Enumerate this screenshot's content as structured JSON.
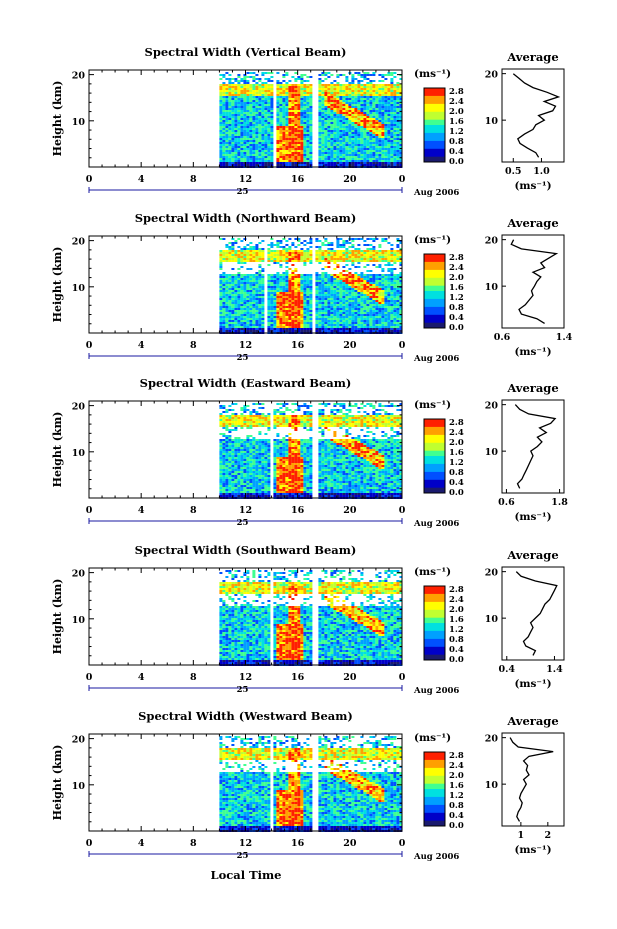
{
  "figure": {
    "x_title": "Local Time",
    "y_label": "Height (km)",
    "avg_title": "Average",
    "unit": "(ms⁻¹)",
    "date_label": "Aug 2006",
    "day_label": "25",
    "x_tick_labels": [
      "0",
      "4",
      "8",
      "12",
      "16",
      "20",
      "0"
    ],
    "y_tick_labels": [
      "20",
      "10"
    ],
    "colorbar_labels": [
      "2.8",
      "2.4",
      "2.0",
      "1.6",
      "1.2",
      "0.8",
      "0.4",
      "0.0"
    ],
    "colors": {
      "colormap": [
        "#1a1a6e",
        "#0000c8",
        "#0050ff",
        "#00a0ff",
        "#00e0e0",
        "#40ff90",
        "#c0ff30",
        "#ffff00",
        "#ffa000",
        "#ff2000"
      ],
      "background": "#ffffff",
      "axes": "#000000"
    }
  },
  "chart_data": [
    {
      "type": "heatmap",
      "title": "Spectral Width (Vertical Beam)",
      "xlabel": "",
      "ylabel": "Height (km)",
      "xlim": [
        0,
        24
      ],
      "ylim": [
        0,
        21
      ],
      "colorbar_range": [
        0.0,
        2.8
      ],
      "data_start_hour": 10,
      "gaps_hours": [
        [
          14.0,
          14.2
        ],
        [
          17.1,
          17.4
        ]
      ],
      "average_profile": {
        "title": "Average",
        "xlim": [
          0.3,
          1.4
        ],
        "x_ticks": [
          0.5,
          1.0
        ],
        "x_tick_labels": [
          "0.5",
          "1.0"
        ],
        "height_km": [
          2,
          3,
          4,
          5,
          6,
          7,
          8,
          9,
          10,
          11,
          12,
          13,
          14,
          15,
          16,
          17,
          18,
          19,
          20
        ],
        "values": [
          0.95,
          0.9,
          0.75,
          0.62,
          0.58,
          0.7,
          0.85,
          0.9,
          1.05,
          0.95,
          1.2,
          1.25,
          1.05,
          1.3,
          1.1,
          0.85,
          0.7,
          0.6,
          0.5
        ]
      }
    },
    {
      "type": "heatmap",
      "title": "Spectral Width (Northward Beam)",
      "xlabel": "",
      "ylabel": "Height (km)",
      "xlim": [
        0,
        24
      ],
      "ylim": [
        0,
        21
      ],
      "colorbar_range": [
        0.0,
        2.8
      ],
      "data_start_hour": 10,
      "gaps_hours": [
        [
          13.3,
          13.5
        ],
        [
          17.0,
          17.3
        ]
      ],
      "average_profile": {
        "title": "Average",
        "xlim": [
          0.6,
          1.4
        ],
        "x_ticks": [
          0.6,
          1.4
        ],
        "x_tick_labels": [
          "0.6",
          "1.4"
        ],
        "height_km": [
          2,
          3,
          4,
          5,
          6,
          7,
          8,
          9,
          10,
          11,
          12,
          13,
          14,
          15,
          16,
          17,
          18,
          19,
          20
        ],
        "values": [
          1.15,
          1.05,
          0.85,
          0.82,
          0.9,
          0.95,
          1.0,
          0.98,
          1.02,
          1.05,
          1.1,
          1.0,
          1.15,
          1.1,
          1.2,
          1.3,
          0.85,
          0.72,
          0.75
        ]
      }
    },
    {
      "type": "heatmap",
      "title": "Spectral Width (Eastward Beam)",
      "xlabel": "",
      "ylabel": "Height (km)",
      "xlim": [
        0,
        24
      ],
      "ylim": [
        0,
        21
      ],
      "colorbar_range": [
        0.0,
        2.8
      ],
      "data_start_hour": 10,
      "gaps_hours": [
        [
          13.9,
          14.1
        ],
        [
          17.1,
          17.4
        ]
      ],
      "average_profile": {
        "title": "Average",
        "xlim": [
          0.5,
          1.9
        ],
        "x_ticks": [
          0.6,
          1.8
        ],
        "x_tick_labels": [
          "0.6",
          "1.8"
        ],
        "height_km": [
          2,
          3,
          4,
          5,
          6,
          7,
          8,
          9,
          10,
          11,
          12,
          13,
          14,
          15,
          16,
          17,
          18,
          19,
          20
        ],
        "values": [
          0.9,
          0.85,
          0.95,
          1.0,
          1.05,
          1.1,
          1.15,
          1.2,
          1.15,
          1.3,
          1.4,
          1.3,
          1.5,
          1.35,
          1.6,
          1.7,
          1.1,
          0.9,
          0.8
        ]
      }
    },
    {
      "type": "heatmap",
      "title": "Spectral Width (Southward Beam)",
      "xlabel": "",
      "ylabel": "Height (km)",
      "xlim": [
        0,
        24
      ],
      "ylim": [
        0,
        21
      ],
      "colorbar_range": [
        0.0,
        2.8
      ],
      "data_start_hour": 10,
      "gaps_hours": [
        [
          13.7,
          14.0
        ],
        [
          17.1,
          17.4
        ]
      ],
      "average_profile": {
        "title": "Average",
        "xlim": [
          0.3,
          1.6
        ],
        "x_ticks": [
          0.4,
          1.4
        ],
        "x_tick_labels": [
          "0.4",
          "1.4"
        ],
        "height_km": [
          2,
          3,
          4,
          5,
          6,
          7,
          8,
          9,
          10,
          11,
          12,
          13,
          14,
          15,
          16,
          17,
          18,
          19,
          20
        ],
        "values": [
          0.95,
          1.0,
          0.8,
          0.75,
          0.85,
          0.9,
          0.95,
          0.9,
          1.0,
          1.1,
          1.15,
          1.2,
          1.3,
          1.35,
          1.4,
          1.45,
          1.0,
          0.7,
          0.6
        ]
      }
    },
    {
      "type": "heatmap",
      "title": "Spectral Width (Westward Beam)",
      "xlabel": "Local Time",
      "ylabel": "Height (km)",
      "xlim": [
        0,
        24
      ],
      "ylim": [
        0,
        21
      ],
      "colorbar_range": [
        0.0,
        2.8
      ],
      "data_start_hour": 10,
      "gaps_hours": [
        [
          13.8,
          14.0
        ],
        [
          17.1,
          17.4
        ]
      ],
      "average_profile": {
        "title": "Average",
        "xlim": [
          0.3,
          2.6
        ],
        "x_ticks": [
          1,
          2
        ],
        "x_tick_labels": [
          "1",
          "2"
        ],
        "height_km": [
          2,
          3,
          4,
          5,
          6,
          7,
          8,
          9,
          10,
          11,
          12,
          13,
          14,
          15,
          16,
          17,
          18,
          19,
          20
        ],
        "values": [
          0.95,
          0.85,
          0.9,
          1.0,
          1.05,
          0.95,
          1.0,
          1.1,
          1.2,
          1.1,
          1.3,
          1.2,
          1.25,
          1.1,
          1.3,
          2.2,
          0.9,
          0.7,
          0.6
        ]
      }
    }
  ]
}
